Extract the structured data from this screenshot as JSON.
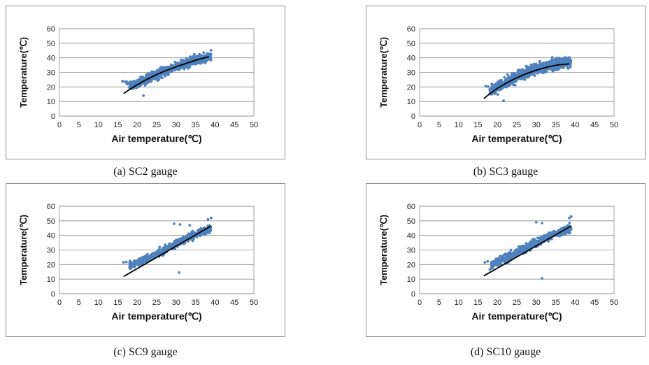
{
  "chart_data": [
    {
      "type": "scatter",
      "caption": "(a)  SC2  gauge",
      "xlabel": "Air temperature(℃)",
      "ylabel": "Temperature(℃)",
      "xlim": [
        0,
        50
      ],
      "ylim": [
        0,
        60
      ],
      "xticks": [
        "0",
        "5",
        "10",
        "15",
        "20",
        "25",
        "30",
        "35",
        "40",
        "45",
        "50"
      ],
      "yticks": [
        "0",
        "10",
        "20",
        "30",
        "40",
        "50",
        "60"
      ],
      "grid": "horizontal",
      "point_color": "#4F81BD",
      "trend_color": "#000000",
      "trend_line": {
        "x": [
          16.5,
          20,
          25,
          30,
          35,
          38.5
        ],
        "y": [
          15.5,
          21.5,
          28.5,
          33.8,
          38.3,
          40.8
        ]
      },
      "scatter_clusters": [
        {
          "x": [
            18,
            39
          ],
          "center": [
            [
              18,
              20
            ],
            [
              25,
              28.5
            ],
            [
              30,
              34
            ],
            [
              35,
              38.5
            ],
            [
              39,
              41
            ]
          ],
          "spread": 2.4,
          "count": 700
        },
        {
          "x": [
            16,
            19
          ],
          "center": [
            [
              16,
              23.5
            ],
            [
              19,
              22
            ]
          ],
          "spread": 1.2,
          "count": 12
        }
      ],
      "outliers": [
        [
          16.2,
          24
        ],
        [
          17.0,
          23.6
        ],
        [
          21.6,
          14
        ]
      ]
    },
    {
      "type": "scatter",
      "caption": "(b)  SC3  gauge",
      "xlabel": "Air temperature(℃)",
      "ylabel": "Temperature(℃)",
      "xlim": [
        0,
        50
      ],
      "ylim": [
        0,
        60
      ],
      "xticks": [
        "0",
        "5",
        "10",
        "15",
        "20",
        "25",
        "30",
        "35",
        "40",
        "45",
        "50"
      ],
      "yticks": [
        "0",
        "10",
        "20",
        "30",
        "40",
        "50",
        "60"
      ],
      "grid": "horizontal",
      "point_color": "#4F81BD",
      "trend_color": "#000000",
      "trend_line": {
        "x": [
          16.5,
          20,
          25,
          30,
          35,
          38.5
        ],
        "y": [
          12,
          19,
          26.3,
          31.5,
          34.8,
          35.8
        ]
      },
      "scatter_clusters": [
        {
          "x": [
            18,
            39
          ],
          "center": [
            [
              18,
              17
            ],
            [
              25,
              27
            ],
            [
              30,
              32
            ],
            [
              35,
              36
            ],
            [
              39,
              37
            ]
          ],
          "spread": 2.8,
          "count": 750
        }
      ],
      "outliers": [
        [
          17.0,
          20.5
        ],
        [
          17.6,
          20.2
        ],
        [
          21.6,
          10.5
        ],
        [
          38.6,
          40
        ]
      ]
    },
    {
      "type": "scatter",
      "caption": "(c)  SC9  gauge",
      "xlabel": "Air temperature(℃)",
      "ylabel": "Temperature(℃)",
      "xlim": [
        0,
        50
      ],
      "ylim": [
        0,
        60
      ],
      "xticks": [
        "0",
        "5",
        "10",
        "15",
        "20",
        "25",
        "30",
        "35",
        "40",
        "45",
        "50"
      ],
      "yticks": [
        "0",
        "10",
        "20",
        "30",
        "40",
        "50",
        "60"
      ],
      "grid": "horizontal",
      "point_color": "#4F81BD",
      "trend_color": "#000000",
      "trend_line": {
        "x": [
          16.5,
          39
        ],
        "y": [
          11.8,
          46.5
        ]
      },
      "scatter_clusters": [
        {
          "x": [
            18,
            39
          ],
          "center": [
            [
              18,
              19
            ],
            [
              25,
              27
            ],
            [
              30,
              34.5
            ],
            [
              35,
              40.5
            ],
            [
              39,
              45
            ]
          ],
          "spread": 2.0,
          "count": 520
        }
      ],
      "outliers": [
        [
          16.5,
          21.5
        ],
        [
          17.2,
          21.8
        ],
        [
          30.8,
          14.5
        ],
        [
          29.5,
          48
        ],
        [
          31,
          47.5
        ],
        [
          38.2,
          51
        ],
        [
          39,
          52
        ],
        [
          33.5,
          47
        ]
      ]
    },
    {
      "type": "scatter",
      "caption": "(d)  SC10  gauge",
      "xlabel": "Air temperature(℃)",
      "ylabel": "Temperature(℃)",
      "xlim": [
        0,
        50
      ],
      "ylim": [
        0,
        60
      ],
      "xticks": [
        "0",
        "5",
        "10",
        "15",
        "20",
        "25",
        "30",
        "35",
        "40",
        "45",
        "50"
      ],
      "yticks": [
        "0",
        "10",
        "20",
        "30",
        "40",
        "50",
        "60"
      ],
      "grid": "horizontal",
      "point_color": "#4F81BD",
      "trend_color": "#000000",
      "trend_line": {
        "x": [
          16.5,
          39
        ],
        "y": [
          12.2,
          46.5
        ]
      },
      "scatter_clusters": [
        {
          "x": [
            18,
            39
          ],
          "center": [
            [
              18,
              19
            ],
            [
              25,
              28
            ],
            [
              30,
              35
            ],
            [
              35,
              41
            ],
            [
              39,
              45
            ]
          ],
          "spread": 2.2,
          "count": 520
        }
      ],
      "outliers": [
        [
          16.8,
          21.5
        ],
        [
          17.5,
          22.2
        ],
        [
          31.5,
          10.5
        ],
        [
          30,
          49
        ],
        [
          31.5,
          48.5
        ],
        [
          38.5,
          52
        ],
        [
          39,
          53
        ]
      ]
    }
  ]
}
